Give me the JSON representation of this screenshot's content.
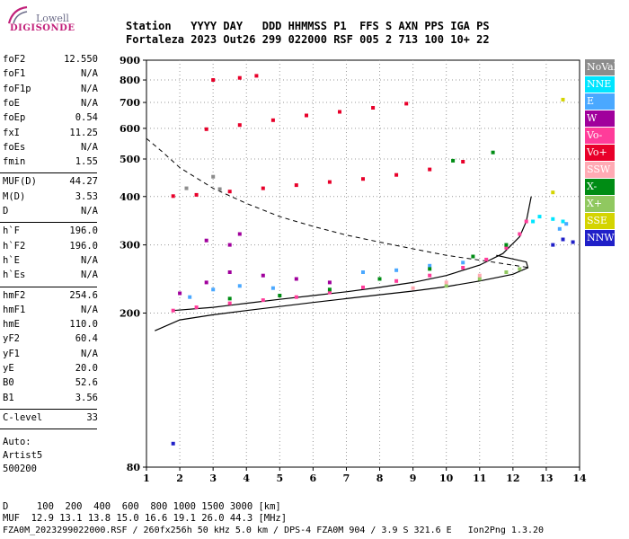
{
  "logo": {
    "brand": "Lowell",
    "product": "DIGISONDE"
  },
  "header": {
    "labels_line": "Station   YYYY DAY   DDD HHMMSS P1  FFS S AXN PPS IGA PS",
    "values_line": "Fortaleza 2023 Out26 299 022000 RSF 005 2 713 100 10+ 22"
  },
  "params": {
    "group1": [
      {
        "name": "foF2",
        "value": "12.550"
      },
      {
        "name": "foF1",
        "value": "N/A"
      },
      {
        "name": "foF1p",
        "value": "N/A"
      },
      {
        "name": "foE",
        "value": "N/A"
      },
      {
        "name": "foEp",
        "value": "0.54"
      },
      {
        "name": "fxI",
        "value": "11.25"
      },
      {
        "name": "foEs",
        "value": "N/A"
      },
      {
        "name": "fmin",
        "value": "1.55"
      }
    ],
    "group2": [
      {
        "name": "MUF(D)",
        "value": "44.27"
      },
      {
        "name": "M(D)",
        "value": "3.53"
      },
      {
        "name": "D",
        "value": "N/A"
      }
    ],
    "group3": [
      {
        "name": "h`F",
        "value": "196.0"
      },
      {
        "name": "h`F2",
        "value": "196.0"
      },
      {
        "name": "h`E",
        "value": "N/A"
      },
      {
        "name": "h`Es",
        "value": "N/A"
      }
    ],
    "group4": [
      {
        "name": "hmF2",
        "value": "254.6"
      },
      {
        "name": "hmF1",
        "value": "N/A"
      },
      {
        "name": "hmE",
        "value": "110.0"
      },
      {
        "name": "yF2",
        "value": "60.4"
      },
      {
        "name": "yF1",
        "value": "N/A"
      },
      {
        "name": "yE",
        "value": "20.0"
      },
      {
        "name": "B0",
        "value": "52.6"
      },
      {
        "name": "B1",
        "value": "3.56"
      }
    ],
    "group5": [
      {
        "name": "C-level",
        "value": "33"
      }
    ]
  },
  "autoscaling": {
    "line1": "Auto:",
    "line2": "Artist5",
    "line3": "500200"
  },
  "bottom": {
    "d_line": "D     100  200  400  600  800 1000 1500 3000 [km]",
    "muf_line": "MUF  12.9 13.1 13.8 15.0 16.6 19.1 26.0 44.3 [MHz]",
    "file_line": "FZA0M_2023299022000.RSF / 260fx256h 50 kHz 5.0 km / DPS-4 FZA0M 904 / 3.9 S 321.6 E   Ion2Png 1.3.20"
  },
  "legend": [
    {
      "label": "NoVal",
      "color": "#8c8c8c",
      "text_color": "#ffffff"
    },
    {
      "label": "NNE",
      "color": "#00e5ff",
      "text_color": "#ffffff"
    },
    {
      "label": "E",
      "color": "#4aa8ff",
      "text_color": "#ffffff"
    },
    {
      "label": "W",
      "color": "#a0009c",
      "text_color": "#ffffff"
    },
    {
      "label": "Vo-",
      "color": "#ff3c9a",
      "text_color": "#ffffff"
    },
    {
      "label": "Vo+",
      "color": "#e8002a",
      "text_color": "#ffffff"
    },
    {
      "label": "SSW",
      "color": "#ffaab4",
      "text_color": "#ffffff"
    },
    {
      "label": "X-",
      "color": "#008c14",
      "text_color": "#ffffff"
    },
    {
      "label": "X+",
      "color": "#90c860",
      "text_color": "#ffffff"
    },
    {
      "label": "SSE",
      "color": "#d4d400",
      "text_color": "#ffffff"
    },
    {
      "label": "NNW",
      "color": "#2020c8",
      "text_color": "#ffffff"
    }
  ],
  "chart_data": {
    "type": "scatter",
    "title": "",
    "xlabel": "",
    "ylabel": "",
    "xlim": [
      1,
      14
    ],
    "ylim": [
      80,
      900
    ],
    "y_scale": "log",
    "x_ticks": [
      1,
      2,
      3,
      4,
      5,
      6,
      7,
      8,
      9,
      10,
      11,
      12,
      13,
      14
    ],
    "y_ticks": [
      80,
      200,
      300,
      400,
      500,
      600,
      700,
      800,
      900
    ],
    "grid": "dotted",
    "legend_placement": "right",
    "series": [
      {
        "name": "Vo-",
        "color": "#ff3c9a",
        "points": [
          [
            1.8,
            203
          ],
          [
            2.5,
            207
          ],
          [
            3.5,
            212
          ],
          [
            4.5,
            216
          ],
          [
            5.5,
            220
          ],
          [
            6.5,
            226
          ],
          [
            7.5,
            233
          ],
          [
            8.5,
            242
          ],
          [
            9.5,
            250
          ],
          [
            10.5,
            262
          ],
          [
            11.2,
            275
          ],
          [
            11.8,
            295
          ],
          [
            12.2,
            320
          ],
          [
            12.4,
            345
          ]
        ]
      },
      {
        "name": "Vo+",
        "color": "#e8002a",
        "points": [
          [
            1.8,
            401
          ],
          [
            2.5,
            404
          ],
          [
            3.5,
            412
          ],
          [
            4.5,
            420
          ],
          [
            5.5,
            428
          ],
          [
            6.5,
            436
          ],
          [
            7.5,
            444
          ],
          [
            8.5,
            455
          ],
          [
            9.5,
            470
          ],
          [
            10.5,
            492
          ],
          [
            2.8,
            597
          ],
          [
            3.8,
            612
          ],
          [
            4.8,
            630
          ],
          [
            5.8,
            648
          ],
          [
            6.8,
            662
          ],
          [
            7.8,
            678
          ],
          [
            8.8,
            695
          ],
          [
            3.0,
            800
          ],
          [
            3.8,
            810
          ],
          [
            4.3,
            820
          ]
        ]
      },
      {
        "name": "W",
        "color": "#a0009c",
        "points": [
          [
            2.0,
            225
          ],
          [
            2.8,
            240
          ],
          [
            3.5,
            255
          ],
          [
            4.5,
            250
          ],
          [
            5.5,
            245
          ],
          [
            6.5,
            240
          ],
          [
            2.8,
            308
          ],
          [
            3.5,
            300
          ],
          [
            3.8,
            320
          ]
        ]
      },
      {
        "name": "E",
        "color": "#4aa8ff",
        "points": [
          [
            2.3,
            220
          ],
          [
            3.0,
            230
          ],
          [
            3.8,
            235
          ],
          [
            4.8,
            232
          ],
          [
            7.5,
            255
          ],
          [
            8.5,
            258
          ],
          [
            9.5,
            265
          ],
          [
            10.5,
            270
          ],
          [
            13.4,
            330
          ],
          [
            13.6,
            340
          ]
        ]
      },
      {
        "name": "NNE",
        "color": "#00e5ff",
        "points": [
          [
            12.6,
            345
          ],
          [
            12.8,
            355
          ],
          [
            13.2,
            350
          ],
          [
            13.5,
            345
          ]
        ]
      },
      {
        "name": "X-",
        "color": "#008c14",
        "points": [
          [
            3.5,
            218
          ],
          [
            5.0,
            222
          ],
          [
            6.5,
            230
          ],
          [
            8.0,
            245
          ],
          [
            9.5,
            260
          ],
          [
            10.8,
            280
          ],
          [
            11.8,
            300
          ],
          [
            10.2,
            495
          ],
          [
            11.4,
            520
          ]
        ]
      },
      {
        "name": "X+",
        "color": "#90c860",
        "points": [
          [
            10.0,
            235
          ],
          [
            11.0,
            245
          ],
          [
            11.8,
            255
          ],
          [
            12.2,
            260
          ]
        ]
      },
      {
        "name": "SSW",
        "color": "#ffaab4",
        "points": [
          [
            9.0,
            232
          ],
          [
            10.0,
            240
          ],
          [
            11.0,
            250
          ]
        ]
      },
      {
        "name": "SSE",
        "color": "#d4d400",
        "points": [
          [
            13.2,
            410
          ],
          [
            13.5,
            712
          ]
        ]
      },
      {
        "name": "NNW",
        "color": "#2020c8",
        "points": [
          [
            1.8,
            92
          ],
          [
            13.2,
            300
          ],
          [
            13.5,
            310
          ],
          [
            13.8,
            305
          ]
        ]
      },
      {
        "name": "NoVal",
        "color": "#8c8c8c",
        "points": [
          [
            2.2,
            420
          ],
          [
            3.0,
            450
          ],
          [
            3.2,
            418
          ]
        ]
      }
    ],
    "profile_curve": [
      [
        1.25,
        180
      ],
      [
        2,
        192
      ],
      [
        3,
        198
      ],
      [
        4,
        203
      ],
      [
        5,
        208
      ],
      [
        6,
        213
      ],
      [
        7,
        218
      ],
      [
        8,
        223
      ],
      [
        9,
        228
      ],
      [
        10,
        234
      ],
      [
        11,
        242
      ],
      [
        12,
        252
      ],
      [
        12.45,
        262
      ],
      [
        12.4,
        271
      ],
      [
        11.5,
        282
      ]
    ],
    "trace_curve": [
      [
        1.8,
        203
      ],
      [
        3,
        207
      ],
      [
        4,
        212
      ],
      [
        5,
        217
      ],
      [
        6,
        222
      ],
      [
        7,
        227
      ],
      [
        8,
        233
      ],
      [
        9,
        240
      ],
      [
        10,
        250
      ],
      [
        11,
        266
      ],
      [
        11.7,
        285
      ],
      [
        12.2,
        315
      ],
      [
        12.4,
        345
      ],
      [
        12.55,
        400
      ]
    ],
    "muf_curve": [
      [
        1,
        565
      ],
      [
        1.5,
        520
      ],
      [
        2,
        475
      ],
      [
        3,
        420
      ],
      [
        4,
        384
      ],
      [
        5,
        355
      ],
      [
        6,
        335
      ],
      [
        7,
        318
      ],
      [
        8,
        305
      ],
      [
        9,
        293
      ],
      [
        10,
        282
      ],
      [
        11,
        274
      ],
      [
        12,
        266
      ],
      [
        12.5,
        262
      ]
    ]
  }
}
